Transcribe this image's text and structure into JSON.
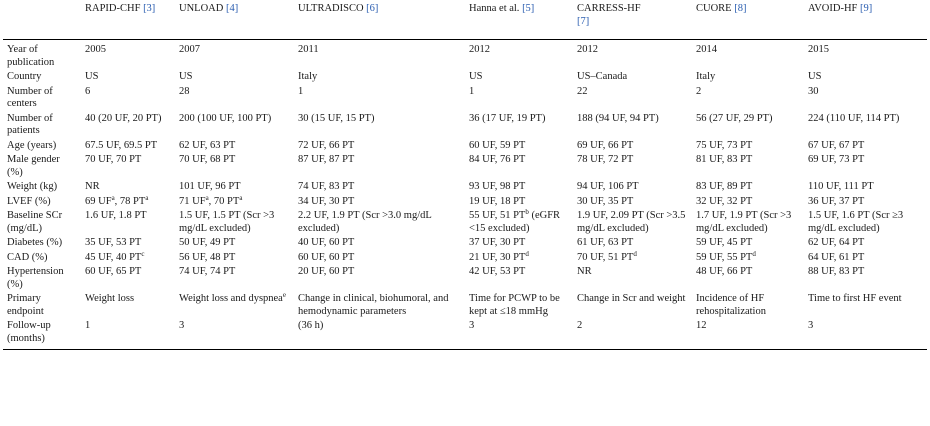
{
  "table": {
    "columns": [
      {
        "name": "RAPID-CHF",
        "ref": "[3]"
      },
      {
        "name": "UNLOAD",
        "ref": "[4]"
      },
      {
        "name": "ULTRADISCO",
        "ref": "[6]"
      },
      {
        "name": "Hanna et al.",
        "ref": "[5]"
      },
      {
        "name": "CARRESS-HF",
        "ref": "[7]"
      },
      {
        "name": "CUORE",
        "ref": "[8]"
      },
      {
        "name": "AVOID-HF",
        "ref": "[9]"
      }
    ],
    "rows": [
      {
        "label": "Year of publication",
        "cells": [
          {
            "text": "2005"
          },
          {
            "text": "2007"
          },
          {
            "text": "2011"
          },
          {
            "text": "2012"
          },
          {
            "text": "2012"
          },
          {
            "text": "2014"
          },
          {
            "text": "2015"
          }
        ]
      },
      {
        "label": "Country",
        "cells": [
          {
            "text": "US"
          },
          {
            "text": "US"
          },
          {
            "text": "Italy"
          },
          {
            "text": "US"
          },
          {
            "text": "US–Canada"
          },
          {
            "text": "Italy"
          },
          {
            "text": "US"
          }
        ]
      },
      {
        "label": "Number of centers",
        "cells": [
          {
            "text": "6"
          },
          {
            "text": "28"
          },
          {
            "text": "1"
          },
          {
            "text": "1"
          },
          {
            "text": "22"
          },
          {
            "text": "2"
          },
          {
            "text": "30"
          }
        ]
      },
      {
        "label": "Number of patients",
        "cells": [
          {
            "text": "40 (20 UF, 20 PT)"
          },
          {
            "text": "200 (100 UF, 100 PT)"
          },
          {
            "text": "30 (15 UF, 15 PT)"
          },
          {
            "text": "36 (17 UF, 19 PT)"
          },
          {
            "text": "188 (94 UF, 94 PT)"
          },
          {
            "text": "56 (27 UF, 29 PT)"
          },
          {
            "text": "224 (110 UF, 114 PT)"
          }
        ]
      },
      {
        "label": "Age (years)",
        "cells": [
          {
            "text": "67.5 UF, 69.5 PT"
          },
          {
            "text": "62 UF, 63 PT"
          },
          {
            "text": "72 UF, 66 PT"
          },
          {
            "text": "60 UF, 59 PT"
          },
          {
            "text": "69 UF, 66 PT"
          },
          {
            "text": "75 UF, 73 PT"
          },
          {
            "text": "67 UF, 67 PT"
          }
        ]
      },
      {
        "label": "Male gender (%)",
        "cells": [
          {
            "text": "70 UF, 70 PT"
          },
          {
            "text": "70 UF, 68 PT"
          },
          {
            "text": "87 UF, 87 PT"
          },
          {
            "text": "84 UF, 76 PT"
          },
          {
            "text": "78 UF, 72 PT"
          },
          {
            "text": "81 UF, 83 PT"
          },
          {
            "text": "69 UF, 73 PT"
          }
        ]
      },
      {
        "label": "Weight (kg)",
        "cells": [
          {
            "text": "NR"
          },
          {
            "text": "101 UF, 96 PT"
          },
          {
            "text": "74 UF, 83 PT"
          },
          {
            "text": "93 UF, 98 PT"
          },
          {
            "text": "94 UF, 106 PT"
          },
          {
            "text": "83 UF, 89 PT"
          },
          {
            "text": "110 UF, 111 PT"
          }
        ]
      },
      {
        "label": "LVEF (%)",
        "cells": [
          {
            "text": "69 UF",
            "sup": "a",
            "text2": ", 78 PT",
            "sup2": "a"
          },
          {
            "text": "71 UF",
            "sup": "a",
            "text2": ", 70 PT",
            "sup2": "a"
          },
          {
            "text": "34 UF, 30 PT"
          },
          {
            "text": "19 UF, 18 PT"
          },
          {
            "text": "30 UF, 35 PT"
          },
          {
            "text": "32 UF, 32 PT"
          },
          {
            "text": "36 UF, 37 PT"
          }
        ]
      },
      {
        "label": "Baseline SCr (mg/dL)",
        "cells": [
          {
            "text": "1.6 UF, 1.8 PT"
          },
          {
            "text": "1.5 UF, 1.5 PT (Scr >3 mg/dL excluded)"
          },
          {
            "text": "2.2 UF, 1.9 PT (Scr >3.0 mg/dL excluded)"
          },
          {
            "text": "55 UF, 51 PT",
            "sup": "b",
            "text2": " (eGFR <15 excluded)"
          },
          {
            "text": "1.9 UF, 2.09 PT (Scr >3.5 mg/dL excluded)"
          },
          {
            "text": "1.7 UF, 1.9 PT (Scr >3 mg/dL excluded)"
          },
          {
            "text": "1.5 UF, 1.6 PT (Scr ≥3 mg/dL excluded)"
          }
        ]
      },
      {
        "label": "Diabetes (%)",
        "cells": [
          {
            "text": "35 UF, 53 PT"
          },
          {
            "text": "50 UF, 49 PT"
          },
          {
            "text": "40 UF, 60 PT"
          },
          {
            "text": "37 UF, 30 PT"
          },
          {
            "text": "61 UF, 63 PT"
          },
          {
            "text": "59 UF, 45 PT"
          },
          {
            "text": "62 UF, 64 PT"
          }
        ]
      },
      {
        "label": "CAD (%)",
        "cells": [
          {
            "text": "45 UF, 40 PT",
            "sup": "c"
          },
          {
            "text": "56 UF, 48 PT"
          },
          {
            "text": "60 UF, 60 PT"
          },
          {
            "text": "21 UF, 30 PT",
            "sup": "d"
          },
          {
            "text": "70 UF, 51 PT",
            "sup": "d"
          },
          {
            "text": "59 UF, 55 PT",
            "sup": "d"
          },
          {
            "text": "64 UF, 61 PT"
          }
        ]
      },
      {
        "label": "Hypertension (%)",
        "cells": [
          {
            "text": "60 UF, 65 PT"
          },
          {
            "text": "74 UF, 74 PT"
          },
          {
            "text": "20 UF, 60 PT"
          },
          {
            "text": "42 UF, 53 PT"
          },
          {
            "text": "NR"
          },
          {
            "text": "48 UF, 66 PT"
          },
          {
            "text": "88 UF, 83 PT"
          }
        ]
      },
      {
        "label": "Primary endpoint",
        "cells": [
          {
            "text": "Weight loss"
          },
          {
            "text": "Weight loss and dyspnea",
            "sup": "e"
          },
          {
            "text": "Change in clinical, biohumoral, and hemodynamic parameters"
          },
          {
            "text": "Time for PCWP to be kept at ≤18 mmHg"
          },
          {
            "text": "Change in Scr and weight"
          },
          {
            "text": "Incidence of HF rehospitalization"
          },
          {
            "text": "Time to first HF event"
          }
        ]
      },
      {
        "label": "Follow-up (months)",
        "cells": [
          {
            "text": "1"
          },
          {
            "text": "3"
          },
          {
            "text": "(36 h)"
          },
          {
            "text": "3"
          },
          {
            "text": "2"
          },
          {
            "text": "12"
          },
          {
            "text": "3"
          }
        ]
      }
    ]
  }
}
